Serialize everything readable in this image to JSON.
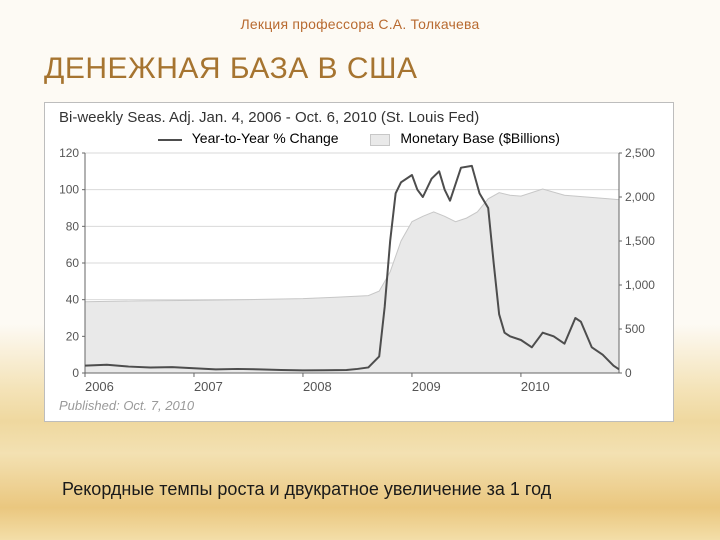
{
  "lecturer_line": "Лекция профессора С.А. Толкачева",
  "lecturer_color": "#b86a30",
  "slide_title": "ДЕНЕЖНАЯ БАЗА В США",
  "slide_title_color": "#a67430",
  "chart": {
    "title": "Bi-weekly Seas. Adj. Jan. 4, 2006 - Oct. 6, 2010  (St. Louis Fed)",
    "title_color": "#333333",
    "published": "Published: Oct. 7, 2010",
    "published_color": "#9a9a9a",
    "legend": {
      "line": "Year-to-Year % Change",
      "area": "Monetary Base ($Billions)"
    },
    "left_axis": {
      "min": 0,
      "max": 120,
      "step": 20,
      "ticks": [
        0,
        20,
        40,
        60,
        80,
        100,
        120
      ]
    },
    "right_axis": {
      "min": 0,
      "max": 2500,
      "step": 500,
      "ticks": [
        0,
        500,
        1000,
        1500,
        2000,
        2500
      ],
      "tick_labels": [
        "0",
        "500",
        "1,000",
        "1,500",
        "2,000",
        "2,500"
      ]
    },
    "x_axis": {
      "min": 2006.0,
      "max": 2010.9,
      "year_ticks": [
        2006,
        2007,
        2008,
        2009,
        2010
      ]
    },
    "colors": {
      "line": "#4d4d4d",
      "area_fill": "#e9e9e9",
      "area_stroke": "#c7c7c7",
      "grid": "#d9d9d9",
      "axis": "#666666",
      "tick_label": "#555555",
      "background": "#ffffff"
    },
    "line_width": 2,
    "area_series": [
      [
        2006.0,
        810
      ],
      [
        2006.5,
        820
      ],
      [
        2007.0,
        825
      ],
      [
        2007.5,
        835
      ],
      [
        2008.0,
        845
      ],
      [
        2008.3,
        860
      ],
      [
        2008.6,
        880
      ],
      [
        2008.7,
        930
      ],
      [
        2008.8,
        1150
      ],
      [
        2008.9,
        1500
      ],
      [
        2009.0,
        1720
      ],
      [
        2009.1,
        1780
      ],
      [
        2009.2,
        1830
      ],
      [
        2009.3,
        1780
      ],
      [
        2009.4,
        1720
      ],
      [
        2009.5,
        1760
      ],
      [
        2009.6,
        1830
      ],
      [
        2009.7,
        1980
      ],
      [
        2009.8,
        2050
      ],
      [
        2009.9,
        2020
      ],
      [
        2010.0,
        2010
      ],
      [
        2010.2,
        2090
      ],
      [
        2010.4,
        2020
      ],
      [
        2010.6,
        2000
      ],
      [
        2010.8,
        1980
      ],
      [
        2010.9,
        1970
      ]
    ],
    "line_series": [
      [
        2006.0,
        4.0
      ],
      [
        2006.2,
        4.5
      ],
      [
        2006.4,
        3.5
      ],
      [
        2006.6,
        3.0
      ],
      [
        2006.8,
        3.2
      ],
      [
        2007.0,
        2.6
      ],
      [
        2007.2,
        2.0
      ],
      [
        2007.4,
        2.2
      ],
      [
        2007.6,
        2.0
      ],
      [
        2007.8,
        1.6
      ],
      [
        2008.0,
        1.4
      ],
      [
        2008.2,
        1.5
      ],
      [
        2008.4,
        1.6
      ],
      [
        2008.5,
        2.2
      ],
      [
        2008.6,
        3.0
      ],
      [
        2008.7,
        9.0
      ],
      [
        2008.75,
        36.0
      ],
      [
        2008.8,
        72.0
      ],
      [
        2008.85,
        98.0
      ],
      [
        2008.9,
        104.0
      ],
      [
        2009.0,
        108.0
      ],
      [
        2009.05,
        100.0
      ],
      [
        2009.1,
        96.0
      ],
      [
        2009.18,
        106.0
      ],
      [
        2009.25,
        110.0
      ],
      [
        2009.3,
        100.0
      ],
      [
        2009.35,
        94.0
      ],
      [
        2009.45,
        112.0
      ],
      [
        2009.55,
        113.0
      ],
      [
        2009.62,
        98.0
      ],
      [
        2009.7,
        90.0
      ],
      [
        2009.75,
        60.0
      ],
      [
        2009.8,
        32.0
      ],
      [
        2009.85,
        22.0
      ],
      [
        2009.9,
        20.0
      ],
      [
        2010.0,
        18.0
      ],
      [
        2010.1,
        14.0
      ],
      [
        2010.2,
        22.0
      ],
      [
        2010.3,
        20.0
      ],
      [
        2010.4,
        16.0
      ],
      [
        2010.5,
        30.0
      ],
      [
        2010.55,
        28.0
      ],
      [
        2010.65,
        14.0
      ],
      [
        2010.75,
        10.0
      ],
      [
        2010.85,
        4.0
      ],
      [
        2010.9,
        2.0
      ]
    ]
  },
  "caption": "Рекордные темпы роста и двукратное увеличение за 1 год",
  "caption_color": "#1a1a1a"
}
